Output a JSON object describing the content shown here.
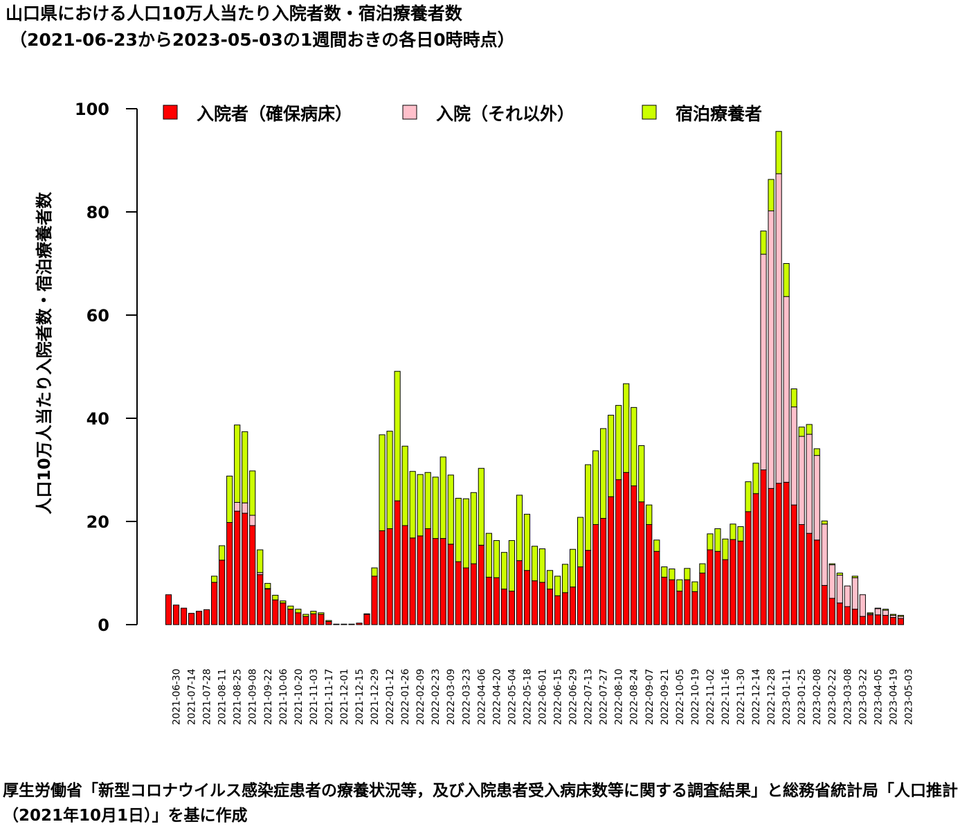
{
  "title_line1": "山口県における人口10万人当たり入院者数・宿泊療養者数",
  "title_line2": "（2021-06-23から2023-05-03の1週間おきの各日0時時点）",
  "footer": "厚生労働省「新型コロナウイルス感染症患者の療養状況等，及び入院患者受入病床数等に関する調査結果」と総務省統計局「人口推計（2021年10月1日）」を基に作成",
  "colors": {
    "hospital": "#ff0000",
    "other": "#ffc0cb",
    "hotel": "#ccff00"
  },
  "chart_data": {
    "type": "bar",
    "stacked": true,
    "ylabel": "人口10万人当たり入院者数・宿泊療養者数",
    "ylim": [
      0,
      100
    ],
    "yticks": [
      0,
      20,
      40,
      60,
      80,
      100
    ],
    "grid": false,
    "legend_position": "top",
    "xtick_labels": [
      "2021-06-30",
      "2021-07-14",
      "2021-07-28",
      "2021-08-11",
      "2021-08-25",
      "2021-09-08",
      "2021-09-22",
      "2021-10-06",
      "2021-10-20",
      "2021-11-03",
      "2021-11-17",
      "2021-12-01",
      "2021-12-15",
      "2021-12-29",
      "2022-01-12",
      "2022-01-26",
      "2022-02-09",
      "2022-02-23",
      "2022-03-09",
      "2022-03-23",
      "2022-04-06",
      "2022-04-20",
      "2022-05-04",
      "2022-05-18",
      "2022-06-01",
      "2022-06-15",
      "2022-06-29",
      "2022-07-13",
      "2022-07-27",
      "2022-08-10",
      "2022-08-24",
      "2022-09-07",
      "2022-09-21",
      "2022-10-05",
      "2022-10-19",
      "2022-11-02",
      "2022-11-16",
      "2022-11-30",
      "2022-12-14",
      "2022-12-28",
      "2023-01-11",
      "2023-01-25",
      "2023-02-08",
      "2023-02-22",
      "2023-03-08",
      "2023-03-22",
      "2023-04-05",
      "2023-04-19",
      "2023-05-03"
    ],
    "series": [
      {
        "name": "入院者（確保病床）",
        "color": "#ff0000",
        "values": [
          5.8,
          3.8,
          3.2,
          2.2,
          2.6,
          2.9,
          8.2,
          12.5,
          19.8,
          22.0,
          21.6,
          19.2,
          9.7,
          6.9,
          4.8,
          4.2,
          3.0,
          2.3,
          1.6,
          2.1,
          2.0,
          0.6,
          0.1,
          0.1,
          0.1,
          0.3,
          2.0,
          9.4,
          18.2,
          18.6,
          24.0,
          19.2,
          16.8,
          17.2,
          18.6,
          16.7,
          16.7,
          15.6,
          12.2,
          11.0,
          11.8,
          15.4,
          9.2,
          9.1,
          6.9,
          6.5,
          12.4,
          10.5,
          8.5,
          8.2,
          6.9,
          5.6,
          6.2,
          7.3,
          11.2,
          14.4,
          19.4,
          20.6,
          24.8,
          28.1,
          29.5,
          26.9,
          23.8,
          19.4,
          14.2,
          9.2,
          8.7,
          6.5,
          8.7,
          6.4,
          10.0,
          14.5,
          14.2,
          12.6,
          16.5,
          16.2,
          21.9,
          25.4,
          30.0,
          26.4,
          27.4,
          27.6,
          23.2,
          19.4,
          17.7,
          16.4,
          7.6,
          5.1,
          4.2,
          3.5,
          3.0,
          1.6,
          1.9,
          1.9,
          1.8,
          1.4,
          1.2
        ]
      },
      {
        "name": "入院（それ以外）",
        "color": "#ffc0cb",
        "values": [
          0,
          0,
          0,
          0,
          0,
          0,
          0,
          0,
          0,
          1.7,
          2.0,
          2.0,
          0.4,
          0.1,
          0,
          0,
          0,
          0,
          0,
          0,
          0,
          0,
          0,
          0,
          0,
          0,
          0,
          0,
          0,
          0,
          0,
          0,
          0,
          0,
          0,
          0,
          0,
          0,
          0,
          0,
          0,
          0,
          0,
          0,
          0,
          0,
          0,
          0,
          0,
          0,
          0,
          0,
          0,
          0,
          0,
          0,
          0,
          0,
          0,
          0,
          0,
          0,
          0,
          0,
          0,
          0,
          0,
          0,
          0,
          0,
          0,
          0,
          0,
          0,
          0,
          0,
          0,
          0,
          41.8,
          53.8,
          60.0,
          36.0,
          19.0,
          17.1,
          19.2,
          16.4,
          11.9,
          6.5,
          5.4,
          4.0,
          6.1,
          4.2,
          0.2,
          1.2,
          1.0,
          0.4,
          0.4
        ]
      },
      {
        "name": "宿泊療養者",
        "color": "#ccff00",
        "values": [
          0,
          0,
          0,
          0,
          0,
          0,
          1.2,
          2.8,
          9.0,
          15.0,
          13.8,
          8.6,
          4.4,
          1.0,
          0.9,
          0.4,
          0.6,
          0.7,
          0.4,
          0.5,
          0.3,
          0.2,
          0,
          0,
          0,
          0,
          0.1,
          1.6,
          18.6,
          18.9,
          25.1,
          15.4,
          12.9,
          11.9,
          10.9,
          11.9,
          15.8,
          13.4,
          12.3,
          13.4,
          13.8,
          14.9,
          8.5,
          7.2,
          7.1,
          9.8,
          12.7,
          10.9,
          6.7,
          6.5,
          3.6,
          3.8,
          5.5,
          7.3,
          9.6,
          16.6,
          14.3,
          17.4,
          15.8,
          14.4,
          17.2,
          15.2,
          10.9,
          3.8,
          2.2,
          2.0,
          2.1,
          2.2,
          2.2,
          1.9,
          1.8,
          3.1,
          4.4,
          4.0,
          3.0,
          2.8,
          5.8,
          5.9,
          4.5,
          6.1,
          8.2,
          6.4,
          3.5,
          1.8,
          1.9,
          1.3,
          0.6,
          0.2,
          0.4,
          0,
          0.3,
          0,
          0.2,
          0.1,
          0.2,
          0.2,
          0.2
        ]
      }
    ]
  }
}
